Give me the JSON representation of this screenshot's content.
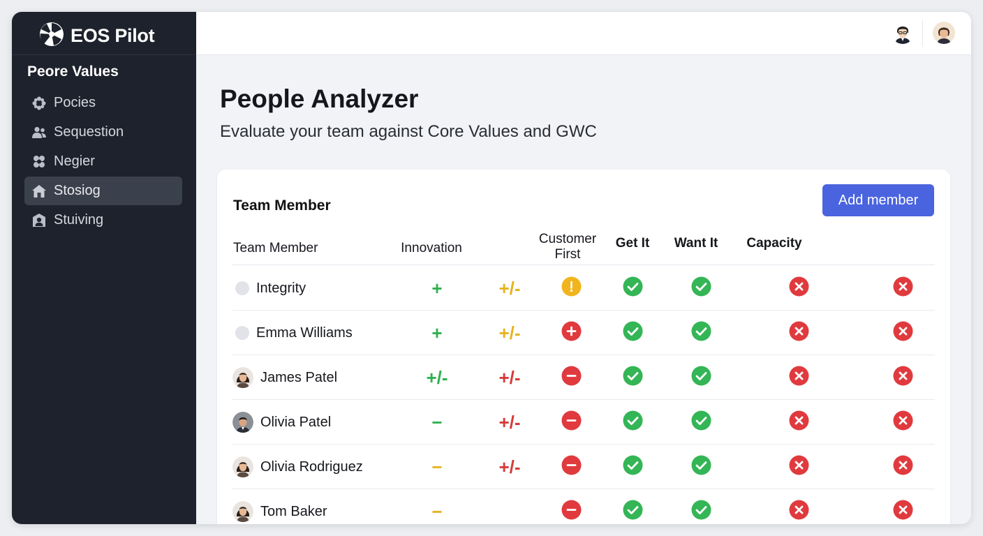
{
  "app": {
    "name": "EOS Pilot"
  },
  "sidebar": {
    "section_title": "Peore Values",
    "items": [
      {
        "label": "Pocies",
        "icon": "flower-icon",
        "active": false
      },
      {
        "label": "Sequestion",
        "icon": "people-icon",
        "active": false
      },
      {
        "label": "Negier",
        "icon": "network-icon",
        "active": false
      },
      {
        "label": "Stosiog",
        "icon": "home-icon",
        "active": true
      },
      {
        "label": "Stuiving",
        "icon": "person-badge-icon",
        "active": false
      }
    ]
  },
  "page": {
    "title": "People Analyzer",
    "subtitle": "Evaluate your team against Core Values and GWC"
  },
  "card": {
    "title": "Team Member",
    "add_button": "Add member",
    "columns": {
      "member": "Team Member",
      "innovation": "Innovation",
      "customer_first_1": "Customer",
      "customer_first_2": "First",
      "get_it": "Get It",
      "want_it": "Want It",
      "capacity": "Capacity"
    },
    "rows": [
      {
        "name": "Integrity",
        "avatar": "dot",
        "c1": "+",
        "c1_color": "green",
        "c2": "+/-",
        "c2_color": "yellow",
        "c3": "exclaim-yellow",
        "c4": "check",
        "c5": "check",
        "c6": "x",
        "c7": "x"
      },
      {
        "name": "Emma Williams",
        "avatar": "dot",
        "c1": "+",
        "c1_color": "green",
        "c2": "+/-",
        "c2_color": "yellow",
        "c3": "plus-red",
        "c4": "check",
        "c5": "check",
        "c6": "x",
        "c7": "x"
      },
      {
        "name": "James Patel",
        "avatar": "photo-f",
        "c1": "+/-",
        "c1_color": "green",
        "c2": "+/-",
        "c2_color": "red",
        "c3": "minus-red",
        "c4": "check",
        "c5": "check",
        "c6": "x",
        "c7": "x"
      },
      {
        "name": "Olivia Patel",
        "avatar": "photo-m",
        "c1": "−",
        "c1_color": "green",
        "c2": "+/-",
        "c2_color": "red",
        "c3": "minus-red",
        "c4": "check",
        "c5": "check",
        "c6": "x",
        "c7": "x"
      },
      {
        "name": "Olivia Rodriguez",
        "avatar": "photo-f",
        "c1": "−",
        "c1_color": "yellow",
        "c2": "+/-",
        "c2_color": "red",
        "c3": "minus-red",
        "c4": "check",
        "c5": "check",
        "c6": "x",
        "c7": "x"
      },
      {
        "name": "Tom Baker",
        "avatar": "photo-f",
        "c1": "−",
        "c1_color": "yellow",
        "c2": "",
        "c2_color": "red",
        "c3": "minus-red",
        "c4": "check",
        "c5": "check",
        "c6": "x",
        "c7": "x"
      }
    ]
  },
  "colors": {
    "sidebar_bg": "#1d222c",
    "accent": "#4a63df",
    "check_green": "#34b556",
    "x_red": "#e03a3e",
    "warn_yellow": "#f0b41c"
  }
}
